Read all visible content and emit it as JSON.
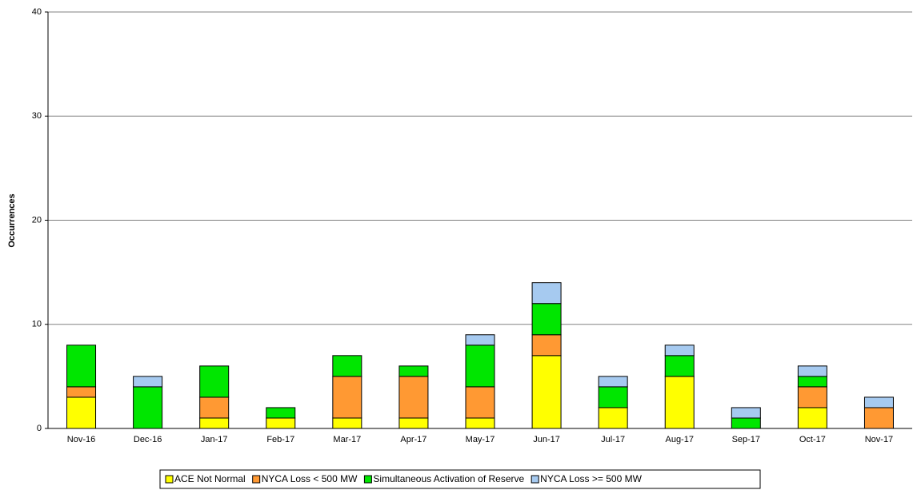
{
  "chart_data": {
    "type": "stacked_bar",
    "y_label": "Occurrences",
    "categories": [
      "Nov-16",
      "Dec-16",
      "Jan-17",
      "Feb-17",
      "Mar-17",
      "Apr-17",
      "May-17",
      "Jun-17",
      "Jul-17",
      "Aug-17",
      "Sep-17",
      "Oct-17",
      "Nov-17"
    ],
    "series": [
      {
        "name": "ACE Not Normal",
        "color": "#ffff00",
        "values": [
          3,
          0,
          1,
          1,
          1,
          1,
          1,
          7,
          2,
          5,
          0,
          2,
          0
        ]
      },
      {
        "name": "NYCA Loss < 500 MW",
        "color": "#ff9933",
        "values": [
          1,
          0,
          2,
          0,
          4,
          4,
          3,
          2,
          0,
          0,
          0,
          2,
          2
        ]
      },
      {
        "name": "Simultaneous Activation of Reserve",
        "color": "#00e600",
        "values": [
          4,
          4,
          3,
          1,
          2,
          1,
          4,
          3,
          2,
          2,
          1,
          1,
          0
        ]
      },
      {
        "name": "NYCA Loss >= 500 MW",
        "color": "#a6caf0",
        "values": [
          0,
          1,
          0,
          0,
          0,
          0,
          1,
          2,
          1,
          1,
          1,
          1,
          1
        ]
      }
    ],
    "ylim": [
      0,
      40
    ],
    "yticks": [
      0,
      10,
      20,
      30,
      40
    ],
    "grid": true,
    "legend": "bottom"
  }
}
